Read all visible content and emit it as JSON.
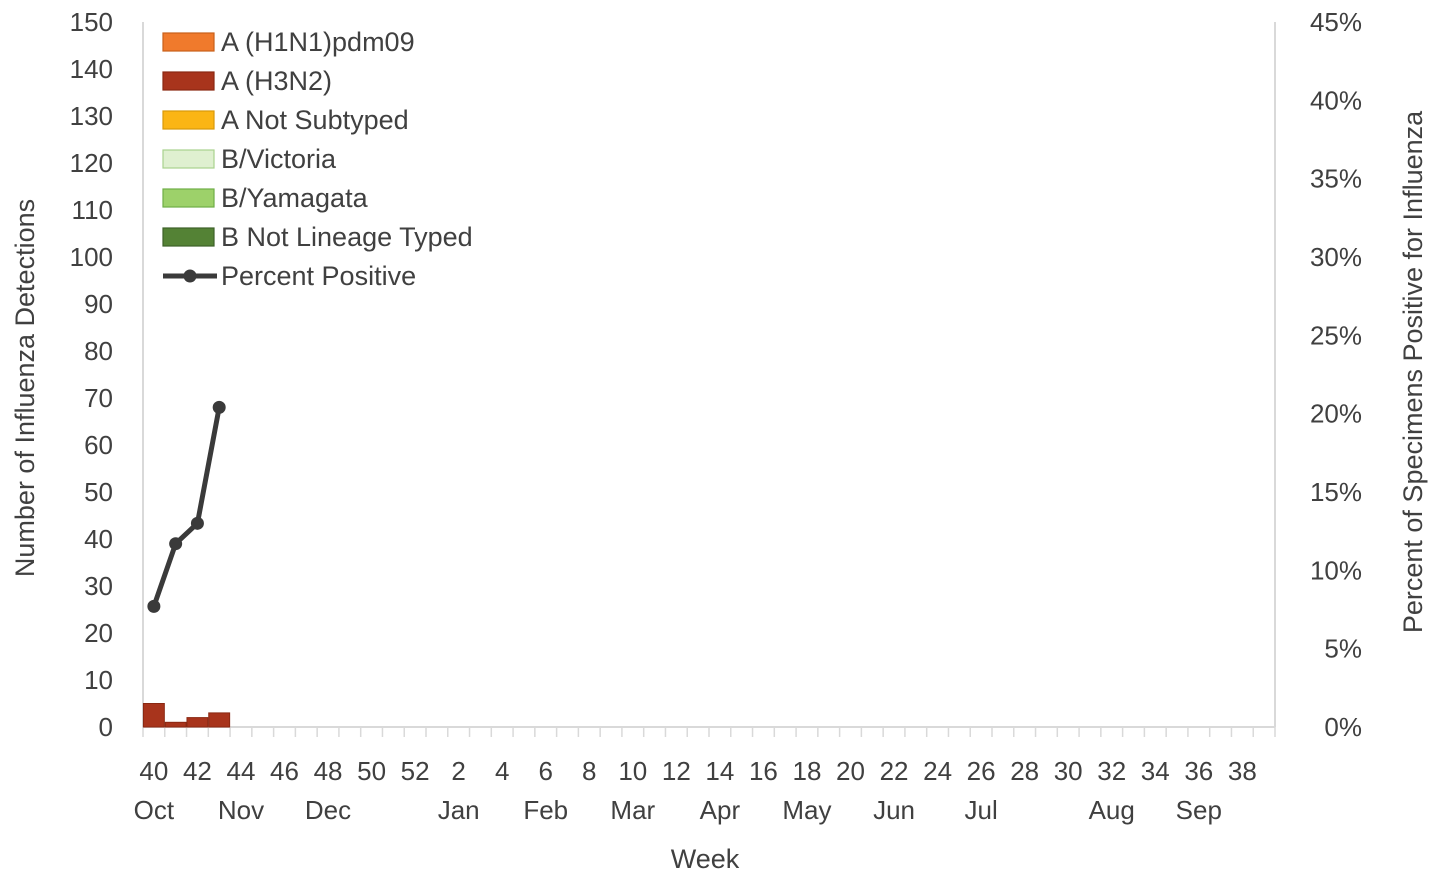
{
  "chart_data": {
    "type": "bar",
    "stacked": true,
    "xlabel": "Week",
    "ylabel": "Number of Influenza Detections",
    "y2label": "Percent of Specimens Positive for Influenza",
    "ylim": [
      0,
      150
    ],
    "y2lim": [
      0,
      45
    ],
    "yticks": [
      0,
      10,
      20,
      30,
      40,
      50,
      60,
      70,
      80,
      90,
      100,
      110,
      120,
      130,
      140,
      150
    ],
    "y2ticks": [
      "0%",
      "5%",
      "10%",
      "15%",
      "20%",
      "25%",
      "30%",
      "35%",
      "40%",
      "45%"
    ],
    "weeks": [
      40,
      41,
      42,
      43,
      44,
      45,
      46,
      47,
      48,
      49,
      50,
      51,
      52,
      1,
      2,
      3,
      4,
      5,
      6,
      7,
      8,
      9,
      10,
      11,
      12,
      13,
      14,
      15,
      16,
      17,
      18,
      19,
      20,
      21,
      22,
      23,
      24,
      25,
      26,
      27,
      28,
      29,
      30,
      31,
      32,
      33,
      34,
      35,
      36,
      37,
      38,
      39
    ],
    "week_tick_labels": [
      "40",
      "42",
      "44",
      "46",
      "48",
      "50",
      "52",
      "2",
      "4",
      "6",
      "8",
      "10",
      "12",
      "14",
      "16",
      "18",
      "20",
      "22",
      "24",
      "26",
      "28",
      "30",
      "32",
      "34",
      "36",
      "38"
    ],
    "month_labels": [
      {
        "label": "Oct",
        "week_index": 0
      },
      {
        "label": "Nov",
        "week_index": 4
      },
      {
        "label": "Dec",
        "week_index": 8
      },
      {
        "label": "Jan",
        "week_index": 14
      },
      {
        "label": "Feb",
        "week_index": 18
      },
      {
        "label": "Mar",
        "week_index": 22
      },
      {
        "label": "Apr",
        "week_index": 26
      },
      {
        "label": "May",
        "week_index": 30
      },
      {
        "label": "Jun",
        "week_index": 34
      },
      {
        "label": "Jul",
        "week_index": 38
      },
      {
        "label": "Aug",
        "week_index": 44
      },
      {
        "label": "Sep",
        "week_index": 48
      }
    ],
    "series": [
      {
        "name": "A (H1N1)pdm09",
        "color": "#f07a2c",
        "border": "#c9601a",
        "values": [
          0,
          0,
          0,
          0
        ]
      },
      {
        "name": "A (H3N2)",
        "color": "#a8341c",
        "border": "#8a2812",
        "values": [
          5,
          1,
          2,
          3
        ]
      },
      {
        "name": "A Not Subtyped",
        "color": "#fbb515",
        "border": "#d99a0a",
        "values": [
          0,
          0,
          0,
          0
        ]
      },
      {
        "name": "B/Victoria",
        "color": "#dff0d0",
        "border": "#a9d18e",
        "values": [
          0,
          0,
          0,
          0
        ]
      },
      {
        "name": "B/Yamagata",
        "color": "#9dd16a",
        "border": "#6fad47",
        "values": [
          0,
          0,
          0,
          0
        ]
      },
      {
        "name": "B Not Lineage Typed",
        "color": "#548235",
        "border": "#3d6128",
        "values": [
          0,
          0,
          0,
          0
        ]
      }
    ],
    "line_series": {
      "name": "Percent Positive",
      "color": "#3a3a3a",
      "values_percent": [
        7.7,
        11.7,
        13.0,
        20.4
      ]
    },
    "legend_position": "top-left"
  }
}
